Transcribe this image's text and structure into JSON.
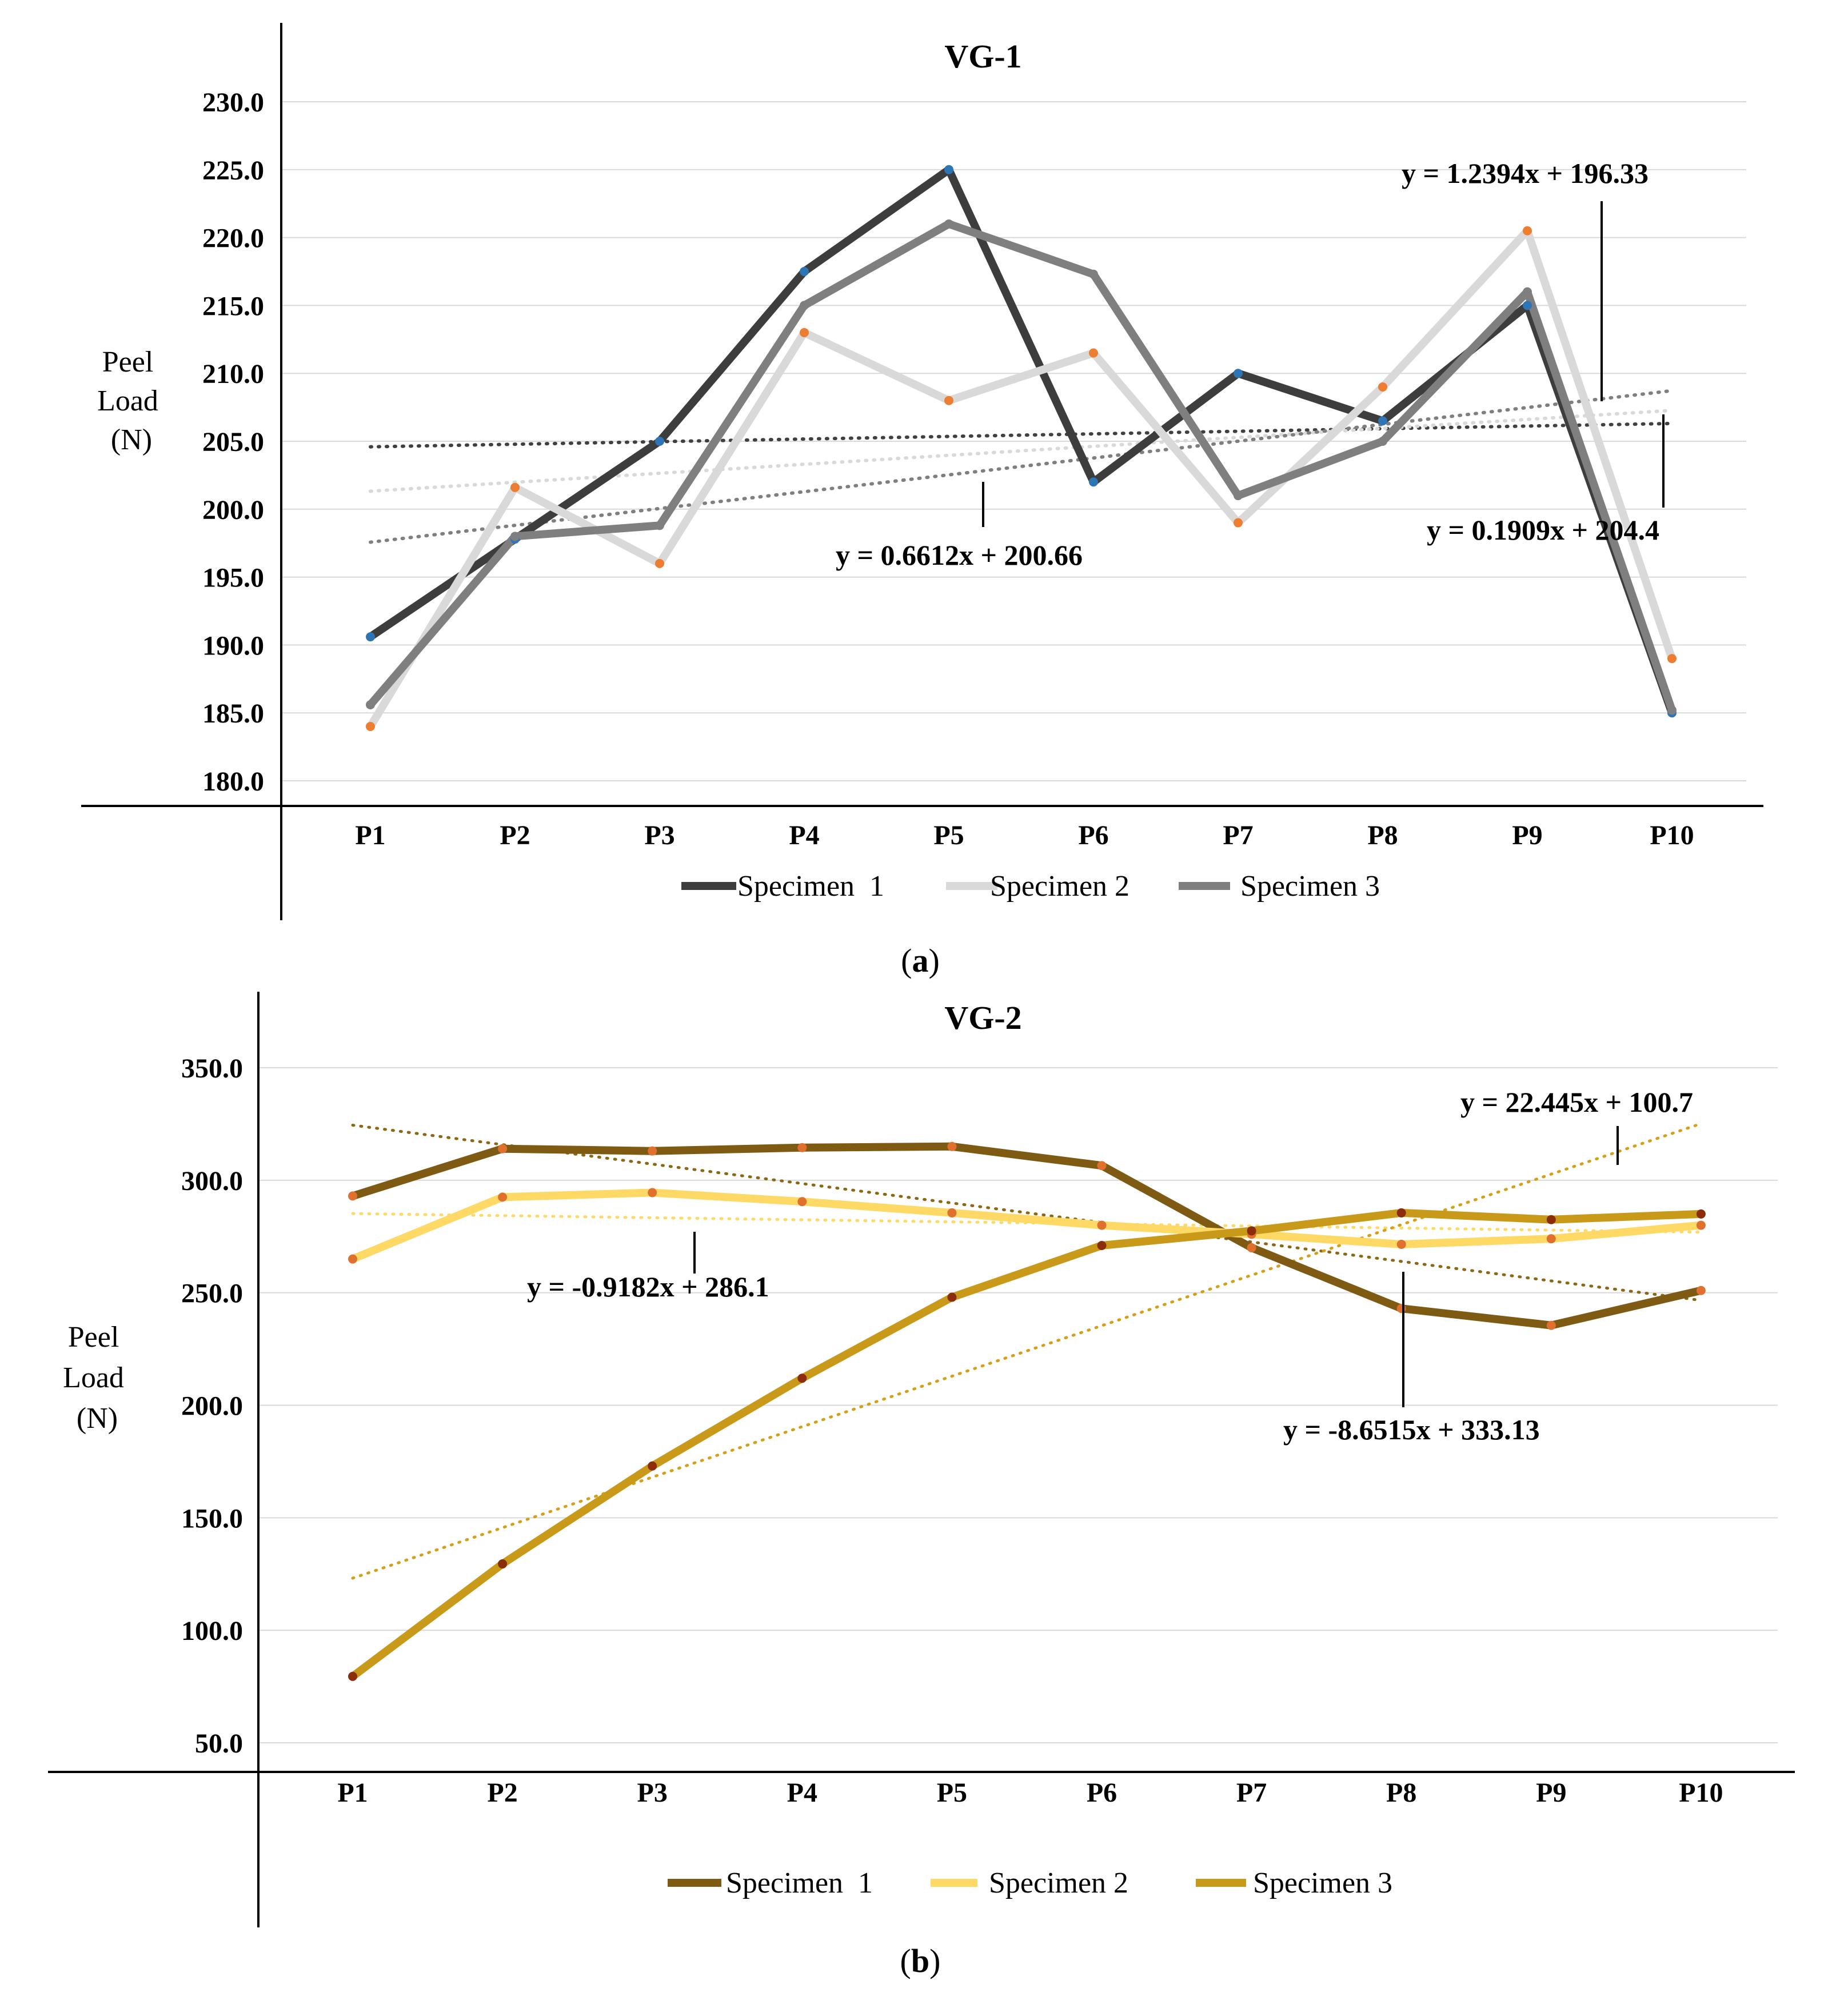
{
  "figure": {
    "caption_a_open": "(",
    "caption_a_letter": "a",
    "caption_a_close": ")",
    "caption_b_open": "(",
    "caption_b_letter": "b",
    "caption_b_close": ")"
  },
  "chart_data": [
    {
      "type": "line",
      "id": "a",
      "title": "VG-1",
      "ylabel_lines": [
        "Peel",
        "Load",
        "(N)"
      ],
      "xlabel": "",
      "categories": [
        "P1",
        "P2",
        "P3",
        "P4",
        "P5",
        "P6",
        "P7",
        "P8",
        "P9",
        "P10"
      ],
      "ylim": [
        180,
        230
      ],
      "yticks": [
        180,
        185,
        190,
        195,
        200,
        205,
        210,
        215,
        220,
        225,
        230
      ],
      "ytick_labels": [
        "180.0",
        "185.0",
        "190.0",
        "195.0",
        "200.0",
        "205.0",
        "210.0",
        "215.0",
        "220.0",
        "225.0",
        "230.0"
      ],
      "grid": true,
      "legend_position": "bottom",
      "series": [
        {
          "name": "Specimen  1",
          "color": "#3d3d3d",
          "marker_color": "#2e75b6",
          "values": [
            190.6,
            197.8,
            205.0,
            217.5,
            225.0,
            202.0,
            210.0,
            206.5,
            215.0,
            185.0
          ]
        },
        {
          "name": "Specimen 2",
          "color": "#d9d9d9",
          "marker_color": "#ed7d31",
          "values": [
            184.0,
            201.6,
            196.0,
            213.0,
            208.0,
            211.5,
            199.0,
            209.0,
            220.5,
            189.0
          ]
        },
        {
          "name": "Specimen 3",
          "color": "#7f7f7f",
          "marker_color": "#7f7f7f",
          "values": [
            185.6,
            198.0,
            198.8,
            215.0,
            221.0,
            217.3,
            201.0,
            205.0,
            216.0,
            185.2
          ]
        }
      ],
      "trendlines": [
        {
          "series": "Specimen  1",
          "slope": 0.1909,
          "intercept": 204.4,
          "color": "#404040",
          "label": "y = 0.1909x + 204.4"
        },
        {
          "series": "Specimen 2",
          "slope": 0.6612,
          "intercept": 200.66,
          "color": "#d9d9d9",
          "label": "y = 0.6612x + 200.66"
        },
        {
          "series": "Specimen 3",
          "slope": 1.2394,
          "intercept": 196.33,
          "color": "#7f7f7f",
          "label": "y = 1.2394x + 196.33"
        }
      ]
    },
    {
      "type": "line",
      "id": "b",
      "title": "VG-2",
      "ylabel_lines": [
        "Peel",
        "Load",
        "(N)"
      ],
      "xlabel": "",
      "categories": [
        "P1",
        "P2",
        "P3",
        "P4",
        "P5",
        "P6",
        "P7",
        "P8",
        "P9",
        "P10"
      ],
      "ylim": [
        50,
        350
      ],
      "yticks": [
        50,
        100,
        150,
        200,
        250,
        300,
        350
      ],
      "ytick_labels": [
        "50.0",
        "100.0",
        "150.0",
        "200.0",
        "250.0",
        "300.0",
        "350.0"
      ],
      "grid": true,
      "legend_position": "bottom",
      "series": [
        {
          "name": "Specimen  1",
          "color": "#7f5a12",
          "marker_color": "#e0702d",
          "values": [
            293.0,
            314.0,
            313.0,
            314.5,
            315.0,
            306.5,
            270.0,
            243.0,
            235.5,
            251.0
          ]
        },
        {
          "name": "Specimen 2",
          "color": "#ffd966",
          "marker_color": "#e0702d",
          "values": [
            265.0,
            292.5,
            294.5,
            290.5,
            285.5,
            280.0,
            276.0,
            271.5,
            274.0,
            280.0
          ]
        },
        {
          "name": "Specimen 3",
          "color": "#c99a1a",
          "marker_color": "#8b2c0a",
          "values": [
            79.5,
            129.5,
            173.0,
            212.0,
            248.0,
            271.0,
            277.5,
            285.5,
            282.5,
            285.0
          ]
        }
      ],
      "trendlines": [
        {
          "series": "Specimen  1",
          "slope": -8.6515,
          "intercept": 333.13,
          "color": "#8b6914",
          "label": "y = -8.6515x + 333.13"
        },
        {
          "series": "Specimen 2",
          "slope": -0.9182,
          "intercept": 286.1,
          "color": "#ffd966",
          "label": "y = -0.9182x + 286.1"
        },
        {
          "series": "Specimen 3",
          "slope": 22.445,
          "intercept": 100.7,
          "color": "#d4a017",
          "label": "y = 22.445x + 100.7"
        }
      ]
    }
  ]
}
